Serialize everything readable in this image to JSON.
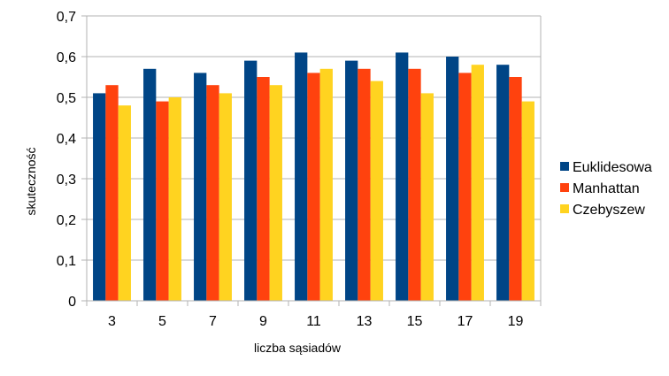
{
  "chart_data": {
    "type": "bar",
    "xlabel": "liczba sąsiadów",
    "ylabel": "skuteczność",
    "categories": [
      "3",
      "5",
      "7",
      "9",
      "11",
      "13",
      "15",
      "17",
      "19"
    ],
    "ylim": [
      0,
      0.7
    ],
    "yticks": [
      "0",
      "0,1",
      "0,2",
      "0,3",
      "0,4",
      "0,5",
      "0,6",
      "0,7"
    ],
    "grid": true,
    "legend_position": "right",
    "series": [
      {
        "name": "Euklidesowa",
        "color": "#004586",
        "values": [
          0.51,
          0.57,
          0.56,
          0.59,
          0.61,
          0.59,
          0.61,
          0.6,
          0.58
        ]
      },
      {
        "name": "Manhattan",
        "color": "#FF420E",
        "values": [
          0.53,
          0.49,
          0.53,
          0.55,
          0.56,
          0.57,
          0.57,
          0.56,
          0.55
        ]
      },
      {
        "name": "Czebyszew",
        "color": "#FFD320",
        "values": [
          0.48,
          0.5,
          0.51,
          0.53,
          0.57,
          0.54,
          0.51,
          0.58,
          0.49
        ]
      }
    ]
  }
}
